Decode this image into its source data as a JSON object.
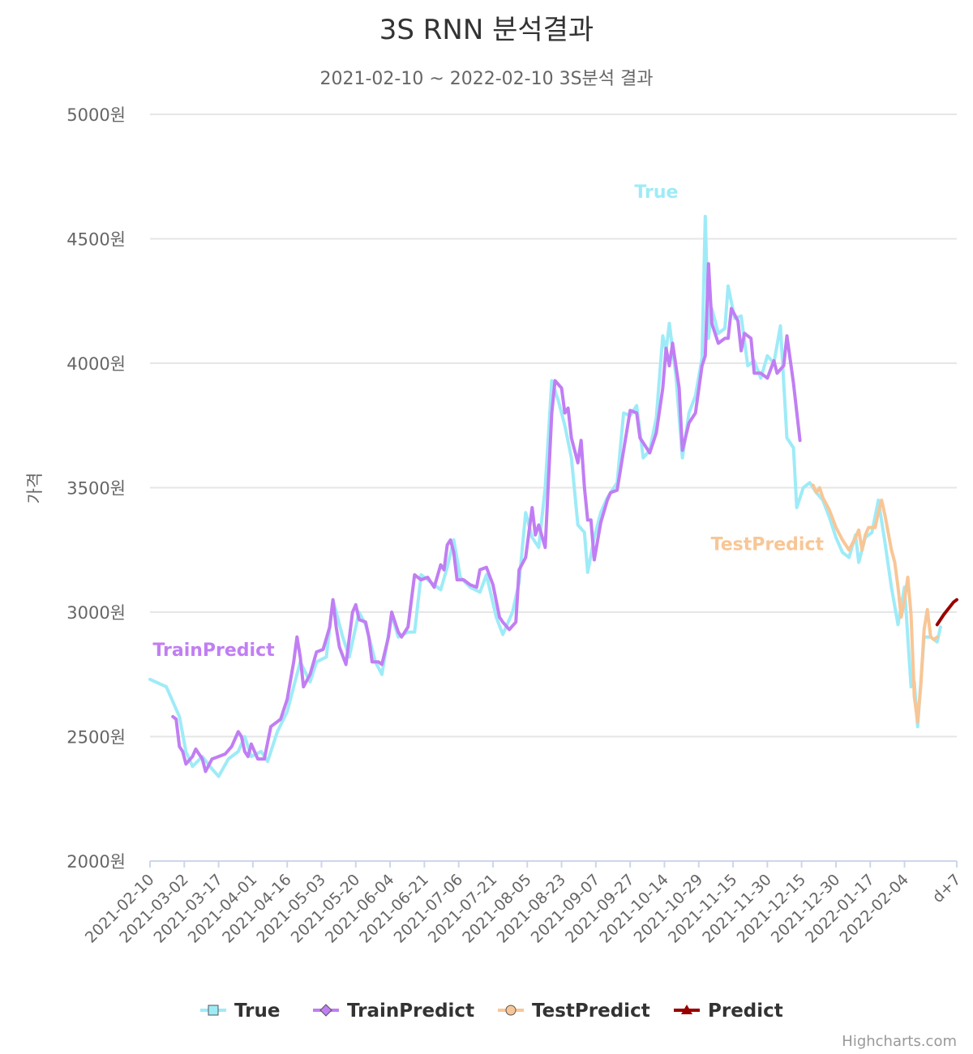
{
  "chart_data": {
    "type": "line",
    "title": "3S RNN 분석결과",
    "subtitle": "2021-02-10 ~ 2022-02-10 3S분석 결과",
    "ylabel": "가격",
    "ylim": [
      2000,
      5000
    ],
    "y_ticks": [
      "2000원",
      "2500원",
      "3000원",
      "3500원",
      "4000원",
      "4500원",
      "5000원"
    ],
    "x_ticks": [
      "2021-02-10",
      "2021-03-02",
      "2021-03-17",
      "2021-04-01",
      "2021-04-16",
      "2021-05-03",
      "2021-05-20",
      "2021-06-04",
      "2021-06-21",
      "2021-07-06",
      "2021-07-21",
      "2021-08-05",
      "2021-08-23",
      "2021-09-07",
      "2021-09-27",
      "2021-10-14",
      "2021-10-29",
      "2021-11-15",
      "2021-11-30",
      "2021-12-15",
      "2021-12-30",
      "2022-01-17",
      "2022-02-04",
      "d+7"
    ],
    "grid": true,
    "legend_position": "bottom",
    "credits": "Highcharts.com",
    "series": [
      {
        "name": "True",
        "color": "#9eebf7",
        "points": [
          [
            0,
            2730
          ],
          [
            5,
            2700
          ],
          [
            9,
            2580
          ],
          [
            11,
            2440
          ],
          [
            13,
            2380
          ],
          [
            16,
            2420
          ],
          [
            19,
            2370
          ],
          [
            21,
            2340
          ],
          [
            24,
            2410
          ],
          [
            27,
            2440
          ],
          [
            29,
            2500
          ],
          [
            31,
            2420
          ],
          [
            34,
            2440
          ],
          [
            36,
            2400
          ],
          [
            39,
            2520
          ],
          [
            42,
            2600
          ],
          [
            44,
            2700
          ],
          [
            46,
            2800
          ],
          [
            49,
            2720
          ],
          [
            51,
            2800
          ],
          [
            54,
            2820
          ],
          [
            56,
            3050
          ],
          [
            59,
            2900
          ],
          [
            61,
            2820
          ],
          [
            64,
            3000
          ],
          [
            66,
            2950
          ],
          [
            69,
            2800
          ],
          [
            71,
            2750
          ],
          [
            74,
            2990
          ],
          [
            76,
            2900
          ],
          [
            79,
            2920
          ],
          [
            81,
            2920
          ],
          [
            83,
            3150
          ],
          [
            86,
            3120
          ],
          [
            89,
            3090
          ],
          [
            91,
            3180
          ],
          [
            93,
            3290
          ],
          [
            95,
            3140
          ],
          [
            98,
            3100
          ],
          [
            101,
            3080
          ],
          [
            103,
            3150
          ],
          [
            106,
            2980
          ],
          [
            108,
            2910
          ],
          [
            111,
            3000
          ],
          [
            113,
            3120
          ],
          [
            115,
            3400
          ],
          [
            117,
            3300
          ],
          [
            119,
            3260
          ],
          [
            121,
            3500
          ],
          [
            123,
            3930
          ],
          [
            125,
            3850
          ],
          [
            127,
            3750
          ],
          [
            129,
            3620
          ],
          [
            131,
            3350
          ],
          [
            133,
            3320
          ],
          [
            134,
            3160
          ],
          [
            136,
            3300
          ],
          [
            138,
            3400
          ],
          [
            140,
            3460
          ],
          [
            143,
            3520
          ],
          [
            145,
            3800
          ],
          [
            147,
            3790
          ],
          [
            149,
            3830
          ],
          [
            151,
            3620
          ],
          [
            153,
            3650
          ],
          [
            155,
            3780
          ],
          [
            157,
            4110
          ],
          [
            158,
            4050
          ],
          [
            159,
            4160
          ],
          [
            161,
            3950
          ],
          [
            163,
            3620
          ],
          [
            165,
            3800
          ],
          [
            167,
            3870
          ],
          [
            169,
            4020
          ],
          [
            170,
            4590
          ],
          [
            171,
            4100
          ],
          [
            172,
            4220
          ],
          [
            174,
            4120
          ],
          [
            176,
            4140
          ],
          [
            177,
            4310
          ],
          [
            179,
            4180
          ],
          [
            181,
            4190
          ],
          [
            183,
            3990
          ],
          [
            185,
            4010
          ],
          [
            187,
            3940
          ],
          [
            189,
            4030
          ],
          [
            191,
            4000
          ],
          [
            193,
            4150
          ],
          [
            195,
            3700
          ],
          [
            197,
            3660
          ],
          [
            198,
            3420
          ],
          [
            200,
            3500
          ],
          [
            202,
            3520
          ],
          [
            204,
            3480
          ],
          [
            206,
            3450
          ],
          [
            208,
            3380
          ],
          [
            210,
            3300
          ],
          [
            212,
            3240
          ],
          [
            214,
            3220
          ],
          [
            216,
            3310
          ],
          [
            217,
            3200
          ],
          [
            219,
            3300
          ],
          [
            221,
            3320
          ],
          [
            223,
            3450
          ],
          [
            225,
            3280
          ],
          [
            227,
            3100
          ],
          [
            229,
            2950
          ],
          [
            231,
            3100
          ],
          [
            233,
            2700
          ],
          [
            234,
            2720
          ],
          [
            235,
            2540
          ],
          [
            237,
            2900
          ],
          [
            239,
            2900
          ],
          [
            241,
            2880
          ],
          [
            242,
            2940
          ]
        ]
      },
      {
        "name": "TrainPredict",
        "color": "#c17ef3",
        "points": [
          [
            7,
            2580
          ],
          [
            8,
            2570
          ],
          [
            9,
            2460
          ],
          [
            10,
            2440
          ],
          [
            11,
            2390
          ],
          [
            13,
            2420
          ],
          [
            14,
            2450
          ],
          [
            16,
            2410
          ],
          [
            17,
            2360
          ],
          [
            19,
            2410
          ],
          [
            21,
            2420
          ],
          [
            23,
            2430
          ],
          [
            25,
            2460
          ],
          [
            27,
            2520
          ],
          [
            28,
            2500
          ],
          [
            29,
            2440
          ],
          [
            30,
            2420
          ],
          [
            31,
            2470
          ],
          [
            33,
            2410
          ],
          [
            35,
            2410
          ],
          [
            37,
            2540
          ],
          [
            39,
            2560
          ],
          [
            40,
            2570
          ],
          [
            42,
            2650
          ],
          [
            44,
            2800
          ],
          [
            45,
            2900
          ],
          [
            46,
            2820
          ],
          [
            47,
            2700
          ],
          [
            49,
            2750
          ],
          [
            51,
            2840
          ],
          [
            53,
            2850
          ],
          [
            55,
            2940
          ],
          [
            56,
            3050
          ],
          [
            57,
            2940
          ],
          [
            58,
            2860
          ],
          [
            60,
            2790
          ],
          [
            62,
            3000
          ],
          [
            63,
            3030
          ],
          [
            64,
            2970
          ],
          [
            66,
            2960
          ],
          [
            67,
            2900
          ],
          [
            68,
            2800
          ],
          [
            70,
            2800
          ],
          [
            71,
            2790
          ],
          [
            73,
            2900
          ],
          [
            74,
            3000
          ],
          [
            75,
            2960
          ],
          [
            76,
            2920
          ],
          [
            77,
            2900
          ],
          [
            79,
            2940
          ],
          [
            81,
            3150
          ],
          [
            83,
            3130
          ],
          [
            85,
            3140
          ],
          [
            87,
            3100
          ],
          [
            89,
            3190
          ],
          [
            90,
            3170
          ],
          [
            91,
            3270
          ],
          [
            92,
            3290
          ],
          [
            93,
            3240
          ],
          [
            94,
            3130
          ],
          [
            96,
            3130
          ],
          [
            98,
            3110
          ],
          [
            100,
            3100
          ],
          [
            101,
            3170
          ],
          [
            103,
            3180
          ],
          [
            105,
            3110
          ],
          [
            107,
            2980
          ],
          [
            108,
            2960
          ],
          [
            110,
            2930
          ],
          [
            112,
            2960
          ],
          [
            113,
            3170
          ],
          [
            115,
            3220
          ],
          [
            117,
            3420
          ],
          [
            118,
            3310
          ],
          [
            119,
            3350
          ],
          [
            121,
            3260
          ],
          [
            123,
            3800
          ],
          [
            124,
            3930
          ],
          [
            126,
            3900
          ],
          [
            127,
            3800
          ],
          [
            128,
            3820
          ],
          [
            129,
            3700
          ],
          [
            131,
            3600
          ],
          [
            132,
            3690
          ],
          [
            133,
            3500
          ],
          [
            134,
            3370
          ],
          [
            135,
            3370
          ],
          [
            136,
            3210
          ],
          [
            138,
            3360
          ],
          [
            140,
            3450
          ],
          [
            141,
            3480
          ],
          [
            143,
            3490
          ],
          [
            145,
            3650
          ],
          [
            147,
            3810
          ],
          [
            149,
            3800
          ],
          [
            150,
            3700
          ],
          [
            151,
            3680
          ],
          [
            153,
            3640
          ],
          [
            155,
            3720
          ],
          [
            157,
            3900
          ],
          [
            158,
            4060
          ],
          [
            159,
            3990
          ],
          [
            160,
            4080
          ],
          [
            162,
            3900
          ],
          [
            163,
            3650
          ],
          [
            165,
            3760
          ],
          [
            167,
            3800
          ],
          [
            169,
            3990
          ],
          [
            170,
            4030
          ],
          [
            171,
            4400
          ],
          [
            172,
            4160
          ],
          [
            173,
            4120
          ],
          [
            174,
            4080
          ],
          [
            176,
            4100
          ],
          [
            177,
            4100
          ],
          [
            178,
            4220
          ],
          [
            180,
            4170
          ],
          [
            181,
            4050
          ],
          [
            182,
            4120
          ],
          [
            184,
            4100
          ],
          [
            185,
            3960
          ],
          [
            187,
            3960
          ],
          [
            189,
            3940
          ],
          [
            191,
            4010
          ],
          [
            192,
            3960
          ],
          [
            194,
            3990
          ],
          [
            195,
            4110
          ],
          [
            197,
            3920
          ],
          [
            199,
            3690
          ]
        ]
      },
      {
        "name": "TestPredict",
        "color": "#f8c696",
        "points": [
          [
            203,
            3510
          ],
          [
            204,
            3480
          ],
          [
            205,
            3500
          ],
          [
            206,
            3460
          ],
          [
            208,
            3410
          ],
          [
            210,
            3340
          ],
          [
            212,
            3290
          ],
          [
            214,
            3250
          ],
          [
            216,
            3300
          ],
          [
            217,
            3330
          ],
          [
            218,
            3250
          ],
          [
            219,
            3310
          ],
          [
            220,
            3340
          ],
          [
            222,
            3340
          ],
          [
            223,
            3400
          ],
          [
            224,
            3450
          ],
          [
            225,
            3390
          ],
          [
            227,
            3250
          ],
          [
            228,
            3200
          ],
          [
            229,
            3100
          ],
          [
            230,
            2980
          ],
          [
            231,
            3050
          ],
          [
            232,
            3140
          ],
          [
            233,
            2990
          ],
          [
            234,
            2660
          ],
          [
            235,
            2560
          ],
          [
            236,
            2710
          ],
          [
            237,
            2930
          ],
          [
            238,
            3010
          ],
          [
            239,
            2900
          ],
          [
            240,
            2890
          ],
          [
            241,
            2900
          ]
        ]
      },
      {
        "name": "Predict",
        "color": "#990000",
        "points": [
          [
            241,
            2950
          ],
          [
            243,
            2990
          ],
          [
            246,
            3040
          ],
          [
            247,
            3050
          ]
        ]
      }
    ],
    "annotations": [
      {
        "text": "True",
        "series": "True"
      },
      {
        "text": "TrainPredict",
        "series": "TrainPredict"
      },
      {
        "text": "TestPredict",
        "series": "TestPredict"
      }
    ]
  }
}
